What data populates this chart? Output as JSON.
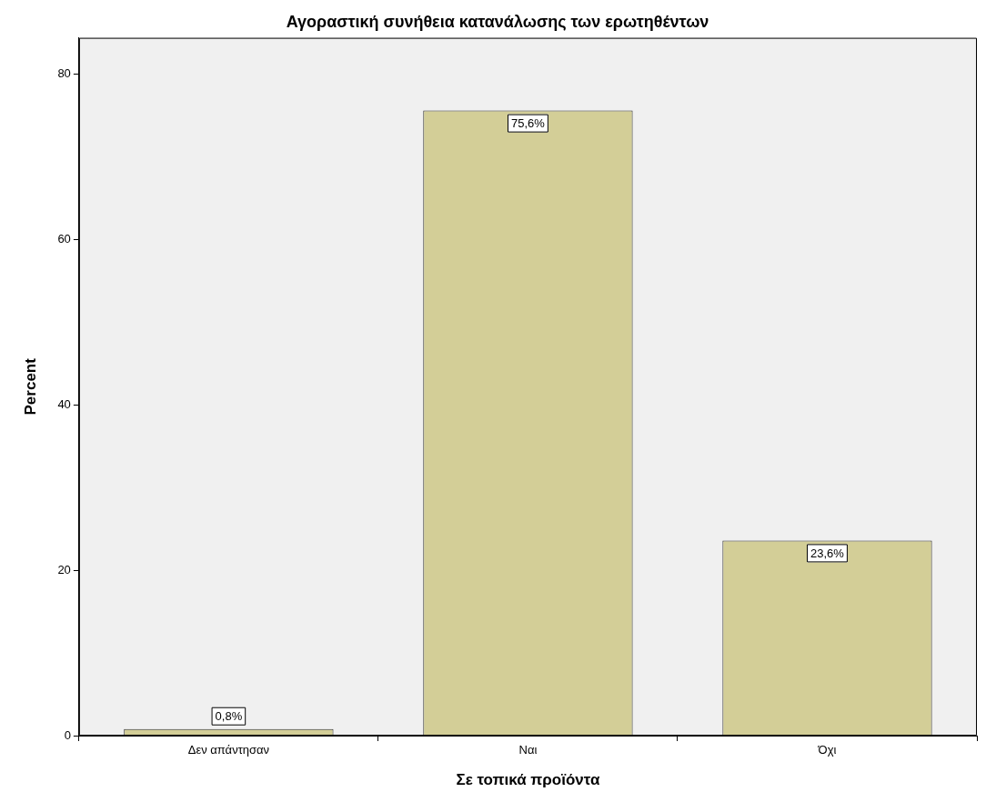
{
  "chart_data": {
    "type": "bar",
    "title": "Αγοραστική συνήθεια κατανάλωσης των ερωτηθέντων",
    "xlabel": "Σε τοπικά προϊόντα",
    "ylabel": "Percent",
    "categories": [
      "Δεν απάντησαν",
      "Ναι",
      "Όχι"
    ],
    "values": [
      0.8,
      75.6,
      23.6
    ],
    "color": "#d3ce97",
    "value_labels": [
      "0,8%",
      "75,6%",
      "23,6%"
    ],
    "ylim": [
      0,
      84.4
    ],
    "yticks": [
      0,
      20,
      40,
      60,
      80
    ],
    "grid": false,
    "legend": false
  }
}
